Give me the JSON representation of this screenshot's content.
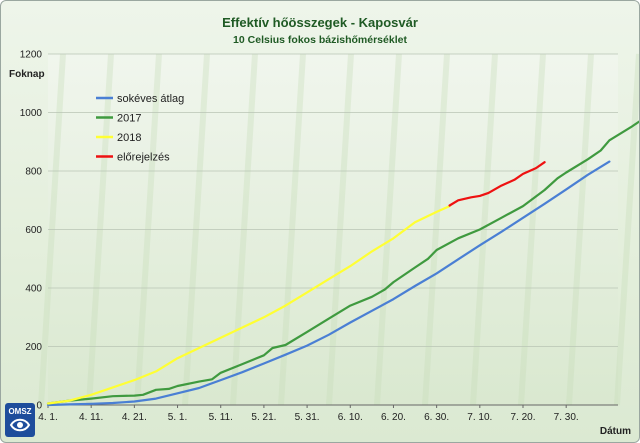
{
  "chart_data": {
    "type": "line",
    "title": "Effektív hőösszegek - Kaposvár",
    "subtitle": "10 Celsius fokos bázishőmérséklet",
    "xlabel": "Dátum",
    "ylabel": "Foknap",
    "ylim": [
      0,
      1200
    ],
    "yticks": [
      0,
      200,
      400,
      600,
      800,
      1000,
      1200
    ],
    "xticks": [
      {
        "day": 0,
        "label": "4. 1."
      },
      {
        "day": 10,
        "label": "4. 11."
      },
      {
        "day": 20,
        "label": "4. 21."
      },
      {
        "day": 30,
        "label": "5. 1."
      },
      {
        "day": 40,
        "label": "5. 11."
      },
      {
        "day": 50,
        "label": "5. 21."
      },
      {
        "day": 60,
        "label": "5. 31."
      },
      {
        "day": 70,
        "label": "6. 10."
      },
      {
        "day": 80,
        "label": "6. 20."
      },
      {
        "day": 90,
        "label": "6. 30."
      },
      {
        "day": 100,
        "label": "7. 10."
      },
      {
        "day": 110,
        "label": "7. 20."
      },
      {
        "day": 120,
        "label": "7. 30."
      }
    ],
    "grid": "horizontal",
    "legend_position": "top-left",
    "series": [
      {
        "name": "sokéves átlag",
        "color": "#4a7fd4",
        "points": [
          [
            0,
            0
          ],
          [
            5,
            2
          ],
          [
            10,
            4
          ],
          [
            15,
            7
          ],
          [
            20,
            12
          ],
          [
            25,
            22
          ],
          [
            30,
            40
          ],
          [
            35,
            58
          ],
          [
            40,
            85
          ],
          [
            45,
            112
          ],
          [
            50,
            142
          ],
          [
            55,
            172
          ],
          [
            60,
            203
          ],
          [
            65,
            240
          ],
          [
            70,
            282
          ],
          [
            75,
            322
          ],
          [
            80,
            362
          ],
          [
            85,
            407
          ],
          [
            90,
            450
          ],
          [
            95,
            498
          ],
          [
            100,
            546
          ],
          [
            105,
            592
          ],
          [
            110,
            640
          ],
          [
            115,
            688
          ],
          [
            120,
            737
          ],
          [
            125,
            787
          ],
          [
            130,
            832
          ]
        ]
      },
      {
        "name": "2017",
        "color": "#3f9a3f",
        "points": [
          [
            0,
            5
          ],
          [
            5,
            15
          ],
          [
            10,
            22
          ],
          [
            15,
            30
          ],
          [
            20,
            32
          ],
          [
            22,
            35
          ],
          [
            25,
            52
          ],
          [
            28,
            55
          ],
          [
            30,
            65
          ],
          [
            35,
            80
          ],
          [
            38,
            88
          ],
          [
            40,
            110
          ],
          [
            45,
            140
          ],
          [
            50,
            170
          ],
          [
            52,
            195
          ],
          [
            55,
            205
          ],
          [
            60,
            250
          ],
          [
            65,
            295
          ],
          [
            70,
            340
          ],
          [
            75,
            370
          ],
          [
            78,
            395
          ],
          [
            80,
            420
          ],
          [
            85,
            470
          ],
          [
            88,
            500
          ],
          [
            90,
            530
          ],
          [
            95,
            570
          ],
          [
            100,
            600
          ],
          [
            105,
            640
          ],
          [
            110,
            680
          ],
          [
            115,
            735
          ],
          [
            118,
            775
          ],
          [
            120,
            795
          ],
          [
            125,
            840
          ],
          [
            128,
            870
          ],
          [
            130,
            905
          ],
          [
            135,
            950
          ],
          [
            138,
            980
          ],
          [
            140,
            1020
          ]
        ]
      },
      {
        "name": "2018",
        "color": "#ffff33",
        "points": [
          [
            0,
            5
          ],
          [
            5,
            15
          ],
          [
            10,
            35
          ],
          [
            15,
            60
          ],
          [
            20,
            85
          ],
          [
            25,
            115
          ],
          [
            30,
            160
          ],
          [
            35,
            195
          ],
          [
            40,
            230
          ],
          [
            45,
            265
          ],
          [
            50,
            300
          ],
          [
            55,
            340
          ],
          [
            60,
            385
          ],
          [
            65,
            430
          ],
          [
            70,
            475
          ],
          [
            75,
            525
          ],
          [
            80,
            570
          ],
          [
            85,
            625
          ],
          [
            90,
            660
          ],
          [
            93,
            680
          ]
        ]
      },
      {
        "name": "előrejelzés",
        "color": "#ee1111",
        "points": [
          [
            93,
            682
          ],
          [
            95,
            700
          ],
          [
            98,
            710
          ],
          [
            100,
            715
          ],
          [
            102,
            725
          ],
          [
            105,
            750
          ],
          [
            108,
            770
          ],
          [
            110,
            790
          ],
          [
            113,
            810
          ],
          [
            115,
            830
          ]
        ]
      }
    ]
  }
}
